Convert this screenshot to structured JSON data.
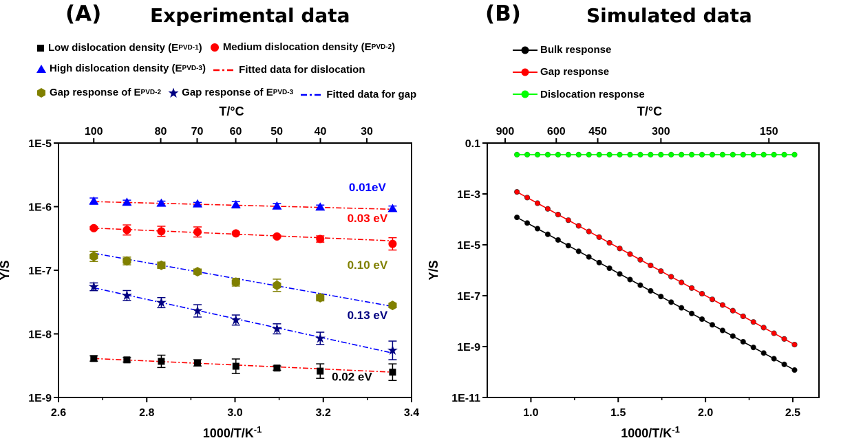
{
  "panel_a": {
    "label": "(A)",
    "title": "Experimental data",
    "legend": [
      {
        "text": "Low dislocation density (E",
        "sub": "PVD-1",
        "after": ")",
        "symbol": "square",
        "color": "#000000"
      },
      {
        "text": "Medium dislocation density (E",
        "sub": "PVD-2",
        "after": ")",
        "symbol": "circle",
        "color": "#ff0000"
      },
      {
        "text": "High dislocation density (E",
        "sub": "PVD-3",
        "after": ")",
        "symbol": "triangle",
        "color": "#0000ff"
      },
      {
        "text": "Fitted data for dislocation",
        "sub": "",
        "after": "",
        "symbol": "dashdot",
        "color": "#ff0000"
      },
      {
        "text": "Gap response of E",
        "sub": "PVD-2",
        "after": "",
        "symbol": "hexagon",
        "color": "#808000"
      },
      {
        "text": "Gap response of E",
        "sub": "PVD-3",
        "after": "",
        "symbol": "star",
        "color": "#000080"
      },
      {
        "text": "Fitted data for gap",
        "sub": "",
        "after": "",
        "symbol": "dashdot",
        "color": "#0000ff"
      }
    ]
  },
  "panel_b": {
    "label": "(B)",
    "title": "Simulated data",
    "legend": [
      {
        "text": "Bulk response",
        "color": "#000000"
      },
      {
        "text": "Gap response",
        "color": "#ff0000"
      },
      {
        "text": "Dislocation response",
        "color": "#00ff00"
      }
    ]
  },
  "chart_data": [
    {
      "type": "scatter",
      "xlabel": "1000/T/K",
      "xlabel_sup": "-1",
      "ylabel": "Y/S",
      "top_axis_label": "T/°C",
      "xlim": [
        2.6,
        3.4
      ],
      "ylim": [
        1e-09,
        1e-05
      ],
      "yscale": "log",
      "x_ticks": [
        2.6,
        2.8,
        3.0,
        3.2,
        3.4
      ],
      "x_tick_labels": [
        "2.6",
        "2.8",
        "3.0",
        "3.2",
        "3.4"
      ],
      "y_ticks": [
        1e-09,
        1e-08,
        1e-07,
        1e-06,
        1e-05
      ],
      "y_tick_labels": [
        "1E-9",
        "1E-8",
        "1E-7",
        "1E-6",
        "1E-5"
      ],
      "top_ticks": [
        100,
        80,
        70,
        60,
        50,
        40,
        30
      ],
      "top_tick_labels": [
        "100",
        "80",
        "70",
        "60",
        "50",
        "40",
        "30"
      ],
      "x": [
        2.68,
        2.755,
        2.833,
        2.915,
        3.002,
        3.095,
        3.193,
        3.3
      ],
      "series": [
        {
          "name": "Low dislocation density (EPVD-1)",
          "marker": "square",
          "color": "#000000",
          "fit_color": "#ff0000",
          "x": [
            2.68,
            2.755,
            2.833,
            2.915,
            3.002,
            3.095,
            3.193,
            3.357
          ],
          "values": [
            4.1e-09,
            3.9e-09,
            3.7e-09,
            3.5e-09,
            3.1e-09,
            2.9e-09,
            2.6e-09,
            2.5e-09
          ],
          "err_factor": [
            1.1,
            1.08,
            1.25,
            1.12,
            1.3,
            1.08,
            1.3,
            1.35
          ],
          "fit": [
            4.1e-09,
            2.5e-09
          ],
          "activation_label": "0.02 eV",
          "label_color": "#000000",
          "label_x": 3.265,
          "label_y": 1.85e-09
        },
        {
          "name": "Gap response of EPVD-3",
          "marker": "star",
          "color": "#000080",
          "fit_color": "#0000ff",
          "x": [
            2.68,
            2.755,
            2.833,
            2.915,
            3.002,
            3.095,
            3.193,
            3.357
          ],
          "values": [
            5.5e-08,
            4e-08,
            3.1e-08,
            2.3e-08,
            1.65e-08,
            1.2e-08,
            8.5e-09,
            5.5e-09
          ],
          "err_factor": [
            1.15,
            1.2,
            1.2,
            1.25,
            1.2,
            1.2,
            1.25,
            1.4
          ],
          "fit": [
            5.3e-08,
            5e-09
          ],
          "activation_label": "0.13 eV",
          "label_color": "#000080",
          "label_x": 3.3,
          "label_y": 1.7e-08
        },
        {
          "name": "Gap response of EPVD-2",
          "marker": "hexagon",
          "color": "#808000",
          "fit_color": "#0000ff",
          "x": [
            2.68,
            2.755,
            2.833,
            2.915,
            3.002,
            3.095,
            3.193,
            3.357
          ],
          "values": [
            1.65e-07,
            1.4e-07,
            1.2e-07,
            9.5e-08,
            6.5e-08,
            5.8e-08,
            3.7e-08,
            2.8e-08
          ],
          "err_factor": [
            1.2,
            1.15,
            1.12,
            1.1,
            1.15,
            1.25,
            1.12,
            1.08
          ],
          "fit": [
            1.85e-07,
            2.7e-08
          ],
          "activation_label": "0.10 eV",
          "label_color": "#808000",
          "label_x": 3.3,
          "label_y": 1.05e-07
        },
        {
          "name": "Medium dislocation density (EPVD-2)",
          "marker": "circle",
          "color": "#ff0000",
          "fit_color": "#ff0000",
          "x": [
            2.68,
            2.755,
            2.833,
            2.915,
            3.002,
            3.095,
            3.193,
            3.357
          ],
          "values": [
            4.6e-07,
            4.3e-07,
            4.1e-07,
            4e-07,
            3.8e-07,
            3.4e-07,
            3.1e-07,
            2.6e-07
          ],
          "err_factor": [
            1.05,
            1.2,
            1.2,
            1.2,
            1.05,
            1.05,
            1.12,
            1.25
          ],
          "fit": [
            4.6e-07,
            2.9e-07
          ],
          "activation_label": "0.03 eV",
          "label_color": "#ff0000",
          "label_x": 3.3,
          "label_y": 5.7e-07
        },
        {
          "name": "High dislocation density (EPVD-3)",
          "marker": "triangle",
          "color": "#0000ff",
          "fit_color": "#ff0000",
          "x": [
            2.68,
            2.755,
            2.833,
            2.915,
            3.002,
            3.095,
            3.193,
            3.357
          ],
          "values": [
            1.22e-06,
            1.17e-06,
            1.13e-06,
            1.1e-06,
            1.07e-06,
            1.02e-06,
            9.8e-07,
            9.3e-07
          ],
          "err_factor": [
            1.12,
            1.08,
            1.08,
            1.06,
            1.12,
            1.1,
            1.08,
            1.1
          ],
          "fit": [
            1.2e-06,
            9.1e-07
          ],
          "activation_label": "0.01eV",
          "label_color": "#0000ff",
          "label_x": 3.3,
          "label_y": 1.75e-06
        }
      ]
    },
    {
      "type": "line",
      "xlabel": "1000/T/K",
      "xlabel_sup": "-1",
      "ylabel": "Y/S",
      "top_axis_label": "T/°C",
      "xlim": [
        0.75,
        2.65
      ],
      "ylim": [
        1e-11,
        0.1
      ],
      "yscale": "log",
      "x_ticks": [
        1.0,
        1.5,
        2.0,
        2.5
      ],
      "x_tick_labels": [
        "1.0",
        "1.5",
        "2.0",
        "2.5"
      ],
      "y_ticks": [
        1e-11,
        1e-09,
        1e-07,
        1e-05,
        0.001,
        0.1
      ],
      "y_tick_labels": [
        "1E-11",
        "1E-9",
        "1E-7",
        "1E-5",
        "1E-3",
        "0.1"
      ],
      "top_ticks": [
        900,
        600,
        450,
        300,
        150
      ],
      "top_tick_labels": [
        "900",
        "600",
        "450",
        "300",
        "150"
      ],
      "x_range": [
        0.92,
        2.51
      ],
      "series": [
        {
          "name": "Bulk response",
          "color": "#000000",
          "y_start": 0.00012,
          "y_end": 1.2e-10
        },
        {
          "name": "Gap response",
          "color": "#ff0000",
          "y_start": 0.0012,
          "y_end": 1.2e-09
        },
        {
          "name": "Dislocation response",
          "color": "#00ff00",
          "y_start": 0.035,
          "y_end": 0.035
        }
      ]
    }
  ]
}
